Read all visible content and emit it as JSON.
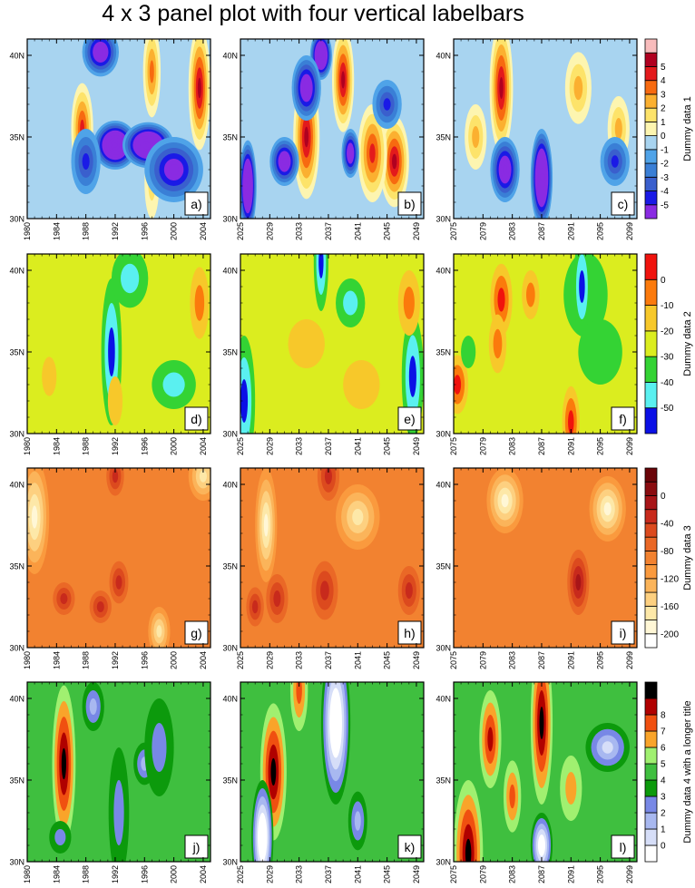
{
  "title": "4 x 3 panel plot with four vertical labelbars",
  "chart_data": {
    "type": "heatmap",
    "title": "4 x 3 panel plot with four vertical labelbars",
    "y_axis": {
      "ticks": [
        30,
        35,
        40
      ],
      "tick_labels": [
        "30N",
        "35N",
        "40N"
      ],
      "range": [
        30,
        41
      ]
    },
    "x_axes": [
      {
        "range": [
          1980,
          2005
        ],
        "ticks": [
          1980,
          1984,
          1988,
          1992,
          1996,
          2000,
          2004
        ]
      },
      {
        "range": [
          2025,
          2050
        ],
        "ticks": [
          2025,
          2029,
          2033,
          2037,
          2041,
          2045,
          2049
        ]
      },
      {
        "range": [
          2075,
          2100
        ],
        "ticks": [
          2075,
          2079,
          2083,
          2087,
          2091,
          2095,
          2099
        ]
      }
    ],
    "rows": [
      {
        "labelbar_title": "Dummy data 1",
        "levels": [
          -5,
          -4,
          -3,
          -2,
          -1,
          0,
          1,
          2,
          3,
          4,
          5
        ],
        "level_labels": [
          "-5",
          "-4",
          "-3",
          "-2",
          "-1",
          "0",
          "1",
          "2",
          "3",
          "4",
          "5"
        ],
        "colors": [
          "#8a2be2",
          "#1a1ae6",
          "#3a5fcd",
          "#3a7fd6",
          "#4fa3e8",
          "#a8d4f0",
          "#fdf5b0",
          "#fde36a",
          "#fbb030",
          "#f76a10",
          "#e31a1c",
          "#b00020",
          "#f8bcbc"
        ],
        "background": 5,
        "panels": [
          {
            "label": "a)",
            "blobs": [
              [
                1997,
                32.2,
                1.0,
                2.2,
                7
              ],
              [
                1987.5,
                35.5,
                1.5,
                2.8,
                10
              ],
              [
                1992,
                34.5,
                3,
                1.5,
                -5
              ],
              [
                1996.5,
                34.5,
                3.5,
                1.4,
                -5
              ],
              [
                2003.5,
                38,
                1.5,
                3.8,
                11
              ],
              [
                1997,
                39,
                1.2,
                2.8,
                9
              ],
              [
                1988,
                33.5,
                2,
                2,
                1
              ],
              [
                2000,
                33,
                4,
                2,
                -1
              ],
              [
                1990,
                40.2,
                2.5,
                1.5,
                -2
              ]
            ]
          },
          {
            "label": "b)",
            "blobs": [
              [
                2034,
                35,
                1.8,
                3.8,
                11
              ],
              [
                2046,
                33.5,
                2,
                2.8,
                11
              ],
              [
                2043,
                34,
                2,
                3,
                10
              ],
              [
                2039,
                38.5,
                1.5,
                3.2,
                11
              ],
              [
                2026,
                32,
                1.2,
                2.8,
                -5
              ],
              [
                2036,
                40,
                1.5,
                1.5,
                -5
              ],
              [
                2034,
                38,
                2,
                2,
                -2
              ],
              [
                2031,
                33.5,
                2,
                1.5,
                -2
              ],
              [
                2040,
                34,
                1.2,
                1.5,
                -2
              ],
              [
                2045,
                37,
                2,
                1.5,
                1
              ]
            ]
          },
          {
            "label": "c)",
            "blobs": [
              [
                2081.5,
                38,
                1.6,
                4.0,
                11
              ],
              [
                2087,
                32.5,
                1.5,
                3.0,
                -5
              ],
              [
                2092,
                38,
                1.8,
                2.2,
                8
              ],
              [
                2097.5,
                35.5,
                1.5,
                2.0,
                8
              ],
              [
                2078,
                35,
                1.5,
                2,
                8
              ],
              [
                2082,
                33,
                2,
                2,
                -2
              ],
              [
                2097,
                33.5,
                2,
                1.5,
                1
              ]
            ]
          }
        ]
      },
      {
        "labelbar_title": "Dummy data 2",
        "levels": [
          -50,
          -40,
          -30,
          -20,
          -10,
          0
        ],
        "level_labels": [
          "-50",
          "-40",
          "-30",
          "-20",
          "-10",
          "0"
        ],
        "colors": [
          "#0b10e6",
          "#5af0f0",
          "#34d334",
          "#dbed1f",
          "#f7c82a",
          "#fb7a0c",
          "#f0130d"
        ],
        "background": 3,
        "panels": [
          {
            "label": "d)",
            "blobs": [
              [
                1991.5,
                35.0,
                1.4,
                4.5,
                0
              ],
              [
                1994,
                39.5,
                2.5,
                1.8,
                1
              ],
              [
                2003.5,
                38,
                1.3,
                2.2,
                5
              ],
              [
                2000,
                33,
                3,
                1.5,
                1
              ],
              [
                1992,
                32,
                1,
                1.5,
                4
              ],
              [
                1983,
                33.5,
                1,
                1.2,
                4
              ]
            ]
          },
          {
            "label": "e)",
            "blobs": [
              [
                2025.5,
                32,
                1.5,
                4.0,
                0
              ],
              [
                2036,
                40.5,
                1,
                3,
                0
              ],
              [
                2048.5,
                33.5,
                1.5,
                3.8,
                0
              ],
              [
                2041.5,
                33,
                2.5,
                1.5,
                4
              ],
              [
                2034,
                35.5,
                2.5,
                1.5,
                4
              ],
              [
                2048,
                38,
                1.5,
                2,
                5
              ],
              [
                2040,
                38,
                2,
                1.5,
                1
              ]
            ]
          },
          {
            "label": "f)",
            "blobs": [
              [
                2093,
                38.5,
                3,
                2.6,
                2
              ],
              [
                2095,
                35,
                3,
                2,
                2
              ],
              [
                2091,
                30.7,
                1.2,
                2.2,
                6
              ],
              [
                2092.5,
                39,
                1.2,
                3,
                0
              ],
              [
                2081.5,
                38.2,
                1.5,
                2.2,
                6
              ],
              [
                2085.5,
                38.5,
                1.2,
                1.5,
                5
              ],
              [
                2081,
                35.5,
                1.2,
                1.8,
                5
              ],
              [
                2075.5,
                33,
                1.5,
                1.8,
                6
              ],
              [
                2077,
                35,
                1,
                1,
                2
              ]
            ]
          }
        ]
      },
      {
        "labelbar_title": "Dummy data 3",
        "levels": [
          -200,
          -180,
          -160,
          -140,
          -120,
          -100,
          -80,
          -60,
          -40,
          -20,
          0,
          20
        ],
        "level_labels": [
          "-200",
          "",
          "-160",
          "",
          "-120",
          "",
          "-80",
          "",
          "-40",
          "",
          "0",
          ""
        ],
        "colors": [
          "#ffffff",
          "#fff7d6",
          "#fde8a8",
          "#fdd080",
          "#fbb45a",
          "#fa9a3e",
          "#f28230",
          "#ea6826",
          "#dc4a1e",
          "#c82a1c",
          "#a81518",
          "#8a0c10",
          "#6a0408"
        ],
        "background": 6,
        "panels": [
          {
            "label": "g)",
            "blobs": [
              [
                1981,
                38,
                2,
                3.5,
                1
              ],
              [
                1990,
                32.5,
                1.5,
                1,
                9
              ],
              [
                1985,
                33,
                1.5,
                1,
                9
              ],
              [
                1992.5,
                34,
                1.3,
                1.3,
                9
              ],
              [
                1992,
                40.5,
                1.2,
                1.2,
                9
              ],
              [
                1998,
                31,
                1.5,
                1.5,
                2
              ],
              [
                2004,
                40.5,
                2,
                1.5,
                2
              ]
            ]
          },
          {
            "label": "h)",
            "blobs": [
              [
                2028.5,
                37.5,
                1.5,
                3.5,
                1
              ],
              [
                2036.5,
                33.5,
                1.8,
                1.8,
                9
              ],
              [
                2030,
                33,
                1.5,
                1.5,
                9
              ],
              [
                2027,
                32.5,
                1.2,
                1.2,
                9
              ],
              [
                2048,
                33.5,
                1.5,
                1.5,
                9
              ],
              [
                2037,
                40.5,
                1.5,
                1.5,
                9
              ],
              [
                2041,
                38,
                3,
                2,
                2
              ]
            ]
          },
          {
            "label": "i)",
            "blobs": [
              [
                2092,
                34,
                1.5,
                2,
                10
              ],
              [
                2089,
                35,
                4,
                2,
                6
              ],
              [
                2077,
                34,
                2.5,
                2,
                6
              ],
              [
                2082,
                39,
                2.5,
                2,
                1
              ],
              [
                2096,
                38.5,
                2.5,
                2,
                1
              ]
            ]
          }
        ]
      },
      {
        "labelbar_title": "Dummy data 4 with a longer title",
        "levels": [
          -0.5,
          0.5,
          1.5,
          2.5,
          3.5,
          4.5,
          5.5,
          6.5,
          7.5,
          8.5
        ],
        "level_labels": [
          "0",
          "1",
          "2",
          "3",
          "4",
          "5",
          "6",
          "7",
          "8"
        ],
        "colors": [
          "#ffffff",
          "#d6def8",
          "#a8b8f0",
          "#7888e6",
          "#0c9a0c",
          "#3fbf3f",
          "#a0f070",
          "#f9a42a",
          "#f05010",
          "#b00000",
          "#000000"
        ],
        "background": 5,
        "panels": [
          {
            "label": "j)",
            "blobs": [
              [
                1985,
                36,
                1.6,
                4.8,
                10
              ],
              [
                1992.5,
                33,
                1.4,
                4.0,
                3
              ],
              [
                1996,
                36,
                1.5,
                1.3,
                2
              ],
              [
                1984.5,
                31.5,
                1.5,
                1,
                3
              ],
              [
                1998,
                37,
                2,
                3,
                3
              ],
              [
                1989,
                39.5,
                1.5,
                1.5,
                2
              ]
            ]
          },
          {
            "label": "k)",
            "blobs": [
              [
                2029.5,
                35.5,
                1.8,
                4.2,
                10
              ],
              [
                2038,
                38.5,
                2,
                5,
                -2
              ],
              [
                2033,
                40.5,
                1.2,
                2.5,
                8
              ],
              [
                2028,
                31.5,
                1.5,
                3.5,
                -2
              ],
              [
                2041,
                32.5,
                1.3,
                1.8,
                2
              ]
            ]
          },
          {
            "label": "l)",
            "blobs": [
              [
                2087,
                38.5,
                1.5,
                5,
                10
              ],
              [
                2080,
                37.5,
                1.5,
                3,
                9
              ],
              [
                2077,
                30.5,
                2,
                4.5,
                10
              ],
              [
                2083,
                34,
                1.2,
                2.2,
                8
              ],
              [
                2091,
                34.5,
                1.5,
                2,
                7
              ],
              [
                2096,
                37,
                3,
                1.5,
                1
              ],
              [
                2087,
                31,
                1.5,
                2,
                -1
              ]
            ]
          }
        ]
      }
    ]
  }
}
